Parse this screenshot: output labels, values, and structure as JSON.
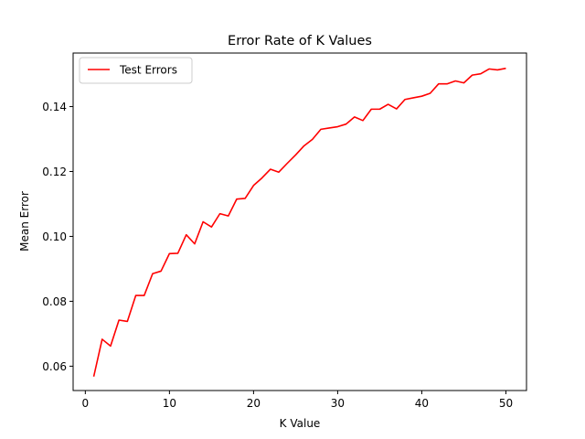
{
  "chart_data": {
    "type": "line",
    "title": "Error Rate of K Values",
    "xlabel": "K Value",
    "ylabel": "Mean Error",
    "xlim": [
      -1.45,
      52.45
    ],
    "ylim": [
      0.0525,
      0.1565
    ],
    "xticks": [
      0,
      10,
      20,
      30,
      40,
      50
    ],
    "yticks": [
      0.06,
      0.08,
      0.1,
      0.12,
      0.14
    ],
    "ytick_labels": [
      "0.06",
      "0.08",
      "0.10",
      "0.12",
      "0.14"
    ],
    "grid": false,
    "legend": "upper-left",
    "series": [
      {
        "name": "Test Errors",
        "color": "#ff0000",
        "x": [
          1,
          2,
          3,
          4,
          5,
          6,
          7,
          8,
          9,
          10,
          11,
          12,
          13,
          14,
          15,
          16,
          17,
          18,
          19,
          20,
          21,
          22,
          23,
          24,
          25,
          26,
          27,
          28,
          29,
          30,
          31,
          32,
          33,
          34,
          35,
          36,
          37,
          38,
          39,
          40,
          41,
          42,
          43,
          44,
          45,
          46,
          47,
          48,
          49,
          50
        ],
        "values": [
          0.0568,
          0.0683,
          0.0662,
          0.0742,
          0.0738,
          0.0818,
          0.0818,
          0.0885,
          0.0893,
          0.0947,
          0.0948,
          0.1005,
          0.0977,
          0.1045,
          0.1029,
          0.107,
          0.1063,
          0.1115,
          0.1117,
          0.1157,
          0.118,
          0.1207,
          0.1198,
          0.1225,
          0.1251,
          0.1279,
          0.1299,
          0.133,
          0.1334,
          0.1338,
          0.1346,
          0.1368,
          0.1357,
          0.1392,
          0.1392,
          0.1407,
          0.1393,
          0.1422,
          0.1427,
          0.1432,
          0.1441,
          0.147,
          0.147,
          0.1479,
          0.1473,
          0.1497,
          0.1501,
          0.1516,
          0.1513,
          0.1518
        ]
      }
    ]
  }
}
